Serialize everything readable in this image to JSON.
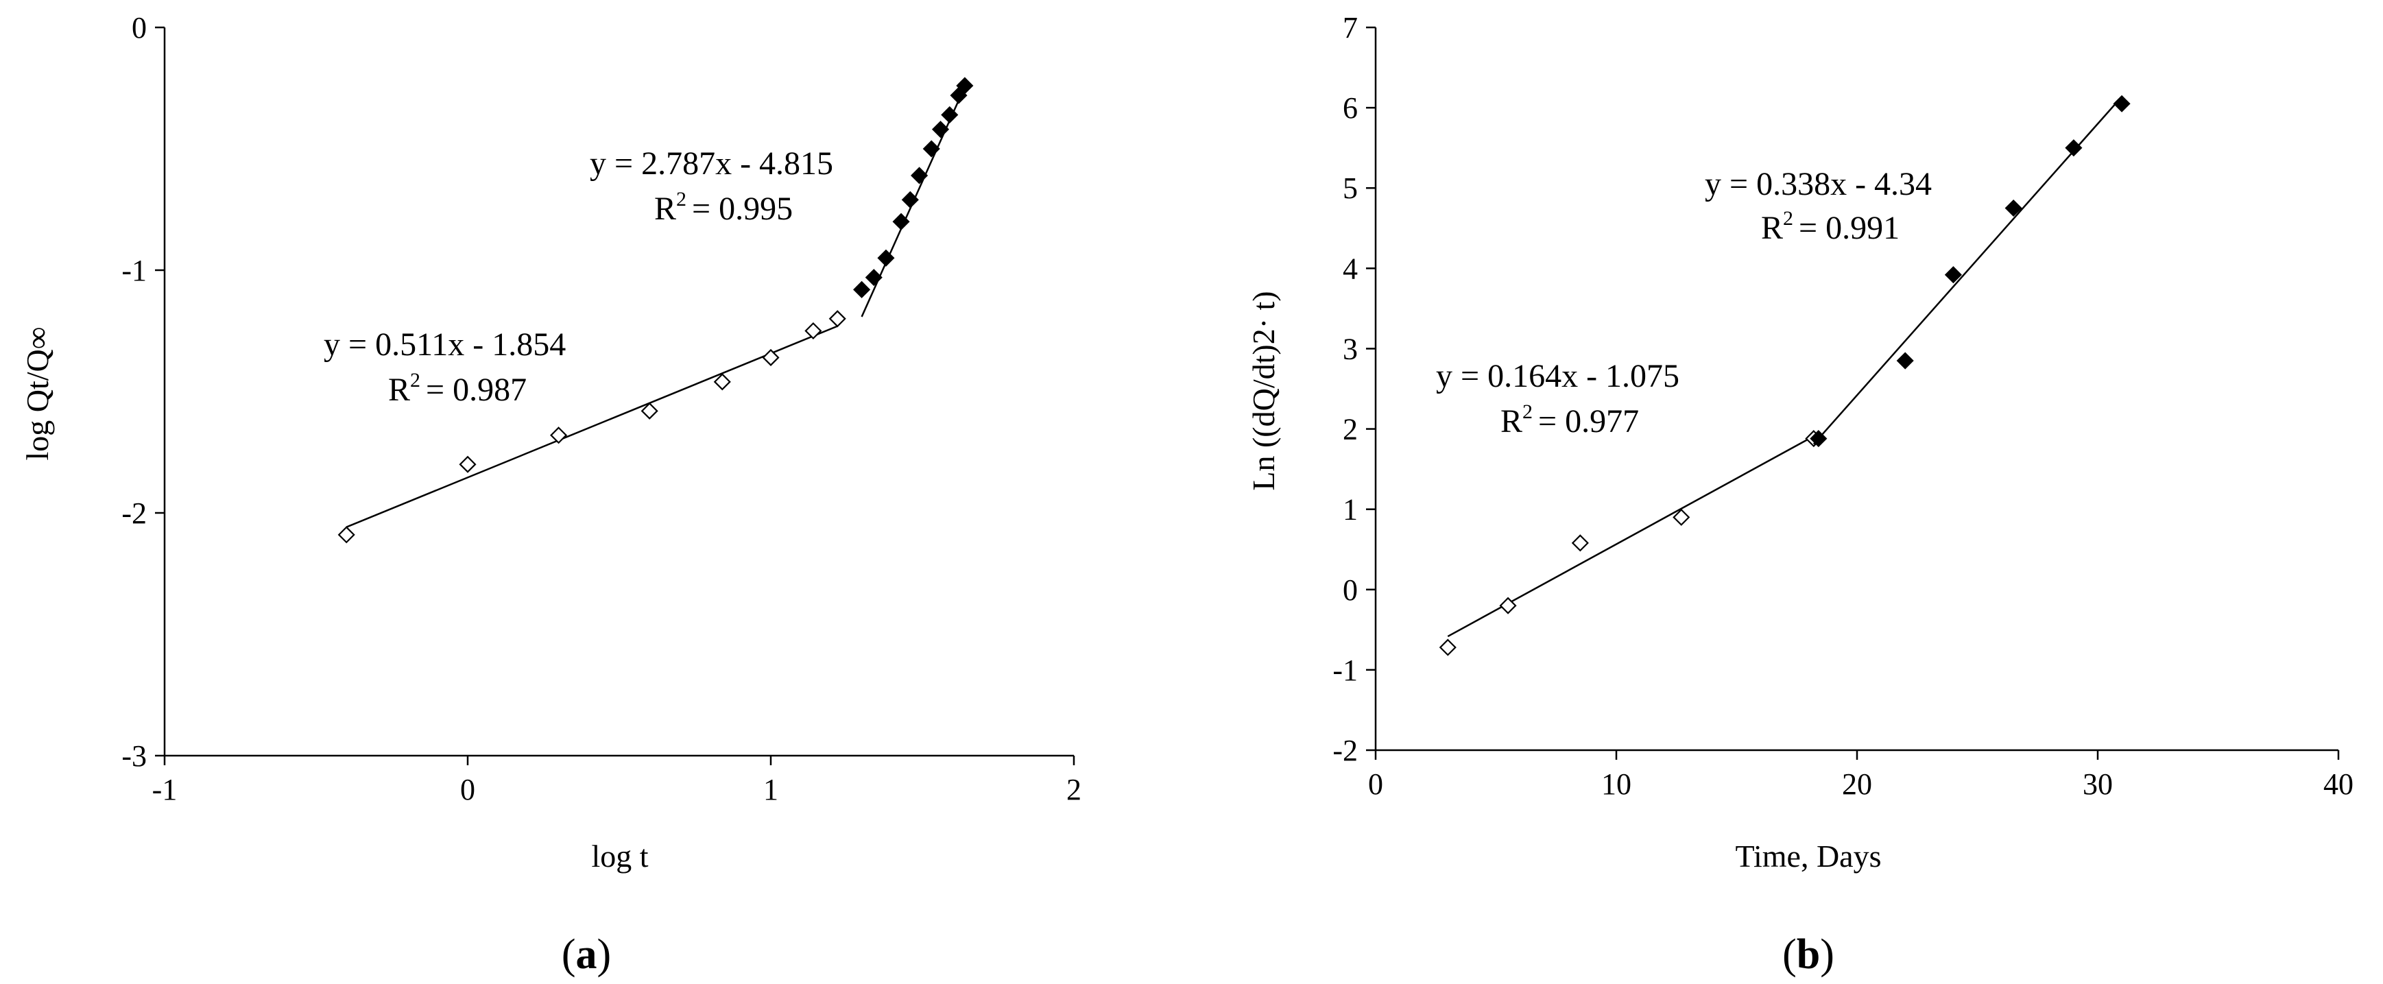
{
  "chart_data": [
    {
      "type": "scatter",
      "panel_label": "a",
      "xlabel": "log t",
      "ylabel": "log Qt/Q∞",
      "xlim": [
        -1,
        2
      ],
      "ylim": [
        -3,
        0
      ],
      "xticks": [
        -1,
        0,
        1,
        2
      ],
      "yticks": [
        -3,
        -2,
        -1,
        0
      ],
      "grid": false,
      "series": [
        {
          "marker": "open-diamond",
          "x": [
            -0.4,
            0.0,
            0.3,
            0.6,
            0.84,
            1.0,
            1.14,
            1.22
          ],
          "y": [
            -2.09,
            -1.8,
            -1.68,
            -1.58,
            -1.46,
            -1.36,
            -1.25,
            -1.2
          ],
          "fit": {
            "slope": 0.511,
            "intercept": -1.854,
            "x_range": [
              -0.4,
              1.22
            ]
          },
          "equation": "y = 0.511x - 1.854",
          "r2_label": "R",
          "r2_value": "= 0.987"
        },
        {
          "marker": "filled-diamond",
          "x": [
            1.3,
            1.34,
            1.38,
            1.43,
            1.46,
            1.49,
            1.53,
            1.56,
            1.59,
            1.62,
            1.64
          ],
          "y": [
            -1.08,
            -1.03,
            -0.95,
            -0.8,
            -0.71,
            -0.61,
            -0.5,
            -0.42,
            -0.36,
            -0.28,
            -0.24
          ],
          "fit": {
            "slope": 2.787,
            "intercept": -4.815,
            "x_range": [
              1.3,
              1.64
            ]
          },
          "equation": "y = 2.787x - 4.815",
          "r2_label": "R",
          "r2_value": "= 0.995"
        }
      ]
    },
    {
      "type": "scatter",
      "panel_label": "b",
      "xlabel": "Time, Days",
      "ylabel": "Ln ((dQ/dt)2· t)",
      "xlim": [
        0,
        40
      ],
      "ylim": [
        -2,
        7
      ],
      "xticks": [
        0,
        10,
        20,
        30,
        40
      ],
      "yticks": [
        -2,
        -1,
        0,
        1,
        2,
        3,
        4,
        5,
        6,
        7
      ],
      "grid": false,
      "series": [
        {
          "marker": "open-diamond",
          "x": [
            3,
            5.5,
            8.5,
            12.7,
            18.2
          ],
          "y": [
            -0.72,
            -0.2,
            0.58,
            0.9,
            1.88
          ],
          "fit": {
            "slope": 0.164,
            "intercept": -1.075,
            "x_range": [
              3,
              18.2
            ]
          },
          "equation": "y = 0.164x - 1.075",
          "r2_label": "R",
          "r2_value": "= 0.977"
        },
        {
          "marker": "filled-diamond",
          "x": [
            18.4,
            22,
            24,
            26.5,
            29,
            31
          ],
          "y": [
            1.88,
            2.85,
            3.92,
            4.75,
            5.5,
            6.05
          ],
          "fit": {
            "slope": 0.338,
            "intercept": -4.34,
            "x_range": [
              18.2,
              31
            ]
          },
          "equation": "y = 0.338x - 4.34",
          "r2_label": "R",
          "r2_value": "= 0.991"
        }
      ]
    }
  ]
}
